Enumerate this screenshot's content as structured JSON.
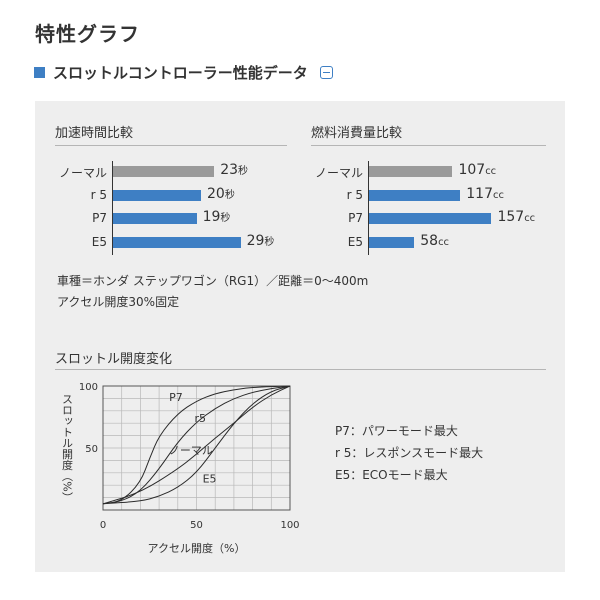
{
  "page_title": "特性グラフ",
  "section": {
    "title": "スロットルコントローラー性能データ",
    "toggle_symbol": "−"
  },
  "colors": {
    "accent": "#3e7fc4",
    "bar_gray": "#9a9a9a",
    "bar_blue": "#3e7fc4",
    "panel_bg": "#eeeeee"
  },
  "chart_data": [
    {
      "type": "bar",
      "orientation": "horizontal",
      "title": "加速時間比較",
      "categories": [
        "ノーマル",
        "r 5",
        "P7",
        "E5"
      ],
      "values": [
        23,
        20,
        19,
        29
      ],
      "unit": "秒",
      "value_labels": [
        "23",
        "20",
        "19",
        "29"
      ],
      "bar_colors": [
        "gray",
        "blue",
        "blue",
        "blue"
      ]
    },
    {
      "type": "bar",
      "orientation": "horizontal",
      "title": "燃料消費量比較",
      "categories": [
        "ノーマル",
        "r 5",
        "P7",
        "E5"
      ],
      "values": [
        107,
        117,
        157,
        58
      ],
      "unit": "cc",
      "value_labels": [
        "107",
        "117",
        "157",
        "58"
      ],
      "bar_colors": [
        "gray",
        "blue",
        "blue",
        "blue"
      ]
    },
    {
      "type": "line",
      "title": "スロットル開度変化",
      "xlabel": "アクセル開度（%）",
      "ylabel": "スロットル開度（%）",
      "xlim": [
        0,
        100
      ],
      "ylim": [
        0,
        100
      ],
      "x_ticks": [
        "0",
        "50",
        "100"
      ],
      "y_ticks": [
        "50",
        "100"
      ],
      "grid": true,
      "series": [
        {
          "name": "P7",
          "points": [
            [
              0,
              5
            ],
            [
              10,
              7
            ],
            [
              20,
              22
            ],
            [
              25,
              42
            ],
            [
              30,
              60
            ],
            [
              40,
              78
            ],
            [
              50,
              88
            ],
            [
              60,
              94
            ],
            [
              70,
              97
            ],
            [
              80,
              99
            ],
            [
              100,
              100
            ]
          ]
        },
        {
          "name": "r5",
          "points": [
            [
              0,
              5
            ],
            [
              10,
              7
            ],
            [
              20,
              15
            ],
            [
              30,
              33
            ],
            [
              40,
              55
            ],
            [
              50,
              71
            ],
            [
              60,
              82
            ],
            [
              70,
              90
            ],
            [
              80,
              95
            ],
            [
              90,
              98
            ],
            [
              100,
              100
            ]
          ]
        },
        {
          "name": "ノーマル",
          "points": [
            [
              0,
              5
            ],
            [
              20,
              14
            ],
            [
              40,
              33
            ],
            [
              50,
              45
            ],
            [
              60,
              58
            ],
            [
              70,
              70
            ],
            [
              80,
              83
            ],
            [
              90,
              93
            ],
            [
              100,
              100
            ]
          ]
        },
        {
          "name": "E5",
          "points": [
            [
              0,
              5
            ],
            [
              20,
              7
            ],
            [
              30,
              11
            ],
            [
              40,
              18
            ],
            [
              50,
              30
            ],
            [
              60,
              50
            ],
            [
              70,
              70
            ],
            [
              80,
              86
            ],
            [
              90,
              96
            ],
            [
              100,
              100
            ]
          ]
        }
      ]
    }
  ],
  "notes": [
    "車種＝ホンダ ステップワゴン（RG1）／距離＝0〜400m",
    "アクセル開度30%固定"
  ],
  "legend": [
    "P7：パワーモード最大",
    "r 5：レスポンスモード最大",
    "E5：ECOモード最大"
  ]
}
